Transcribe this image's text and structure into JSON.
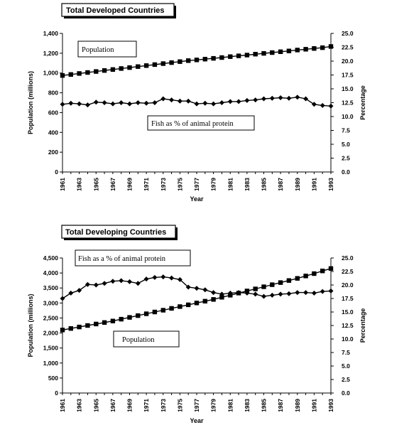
{
  "chart_data": [
    {
      "type": "line",
      "title": "Total Developed Countries",
      "xlabel": "Year",
      "ylabel_left": "Population (millions)",
      "ylabel_right": "Percentage",
      "ylim_left": [
        0,
        1400
      ],
      "ylim_right": [
        0,
        25
      ],
      "left_ticks": [
        "0",
        "200",
        "400",
        "600",
        "800",
        "1,000",
        "1,200",
        "1,400"
      ],
      "right_ticks": [
        "0.0",
        "2.5",
        "5.0",
        "7.5",
        "10.0",
        "12.5",
        "15.0",
        "17.5",
        "20.0",
        "22.5",
        "25.0"
      ],
      "x_tick_labels": [
        "1961",
        "1963",
        "1965",
        "1967",
        "1969",
        "1971",
        "1973",
        "1975",
        "1977",
        "1979",
        "1981",
        "1983",
        "1985",
        "1987",
        "1989",
        "1991",
        "1993"
      ],
      "x": [
        1961,
        1962,
        1963,
        1964,
        1965,
        1966,
        1967,
        1968,
        1969,
        1970,
        1971,
        1972,
        1973,
        1974,
        1975,
        1976,
        1977,
        1978,
        1979,
        1980,
        1981,
        1982,
        1983,
        1984,
        1985,
        1986,
        1987,
        1988,
        1989,
        1990,
        1991,
        1992,
        1993
      ],
      "grid": false,
      "series": [
        {
          "name": "Population",
          "axis": "left",
          "marker": "square",
          "values": [
            975,
            985,
            995,
            1005,
            1015,
            1025,
            1035,
            1045,
            1055,
            1065,
            1075,
            1085,
            1095,
            1105,
            1115,
            1125,
            1132,
            1140,
            1148,
            1156,
            1165,
            1173,
            1181,
            1190,
            1198,
            1206,
            1215,
            1223,
            1232,
            1240,
            1248,
            1256,
            1268
          ]
        },
        {
          "name": "Fish as % of animal protein",
          "axis": "right",
          "marker": "diamond",
          "values": [
            12.2,
            12.4,
            12.3,
            12.1,
            12.6,
            12.5,
            12.3,
            12.5,
            12.3,
            12.5,
            12.4,
            12.5,
            13.2,
            13.0,
            12.8,
            12.8,
            12.3,
            12.4,
            12.3,
            12.5,
            12.7,
            12.7,
            12.9,
            13.0,
            13.2,
            13.3,
            13.4,
            13.3,
            13.5,
            13.2,
            12.2,
            12.0,
            11.9
          ]
        }
      ]
    },
    {
      "type": "line",
      "title": "Total Developing Countries",
      "xlabel": "Year",
      "ylabel_left": "Population (millions)",
      "ylabel_right": "Percentage",
      "ylim_left": [
        0,
        4500
      ],
      "ylim_right": [
        0,
        25
      ],
      "left_ticks": [
        "0",
        "500",
        "1,000",
        "1,500",
        "2,000",
        "2,500",
        "3,000",
        "3,500",
        "4,000",
        "4,500"
      ],
      "right_ticks": [
        "0.0",
        "2.5",
        "5.0",
        "7.5",
        "10.0",
        "12.5",
        "15.0",
        "17.5",
        "20.0",
        "22.5",
        "25.0"
      ],
      "x_tick_labels": [
        "1961",
        "1963",
        "1965",
        "1967",
        "1969",
        "1971",
        "1973",
        "1975",
        "1977",
        "1979",
        "1981",
        "1983",
        "1985",
        "1987",
        "1989",
        "1991",
        "1993"
      ],
      "x": [
        1961,
        1962,
        1963,
        1964,
        1965,
        1966,
        1967,
        1968,
        1969,
        1970,
        1971,
        1972,
        1973,
        1974,
        1975,
        1976,
        1977,
        1978,
        1979,
        1980,
        1981,
        1982,
        1983,
        1984,
        1985,
        1986,
        1987,
        1988,
        1989,
        1990,
        1991,
        1992,
        1993
      ],
      "grid": false,
      "series": [
        {
          "name": "Population",
          "axis": "left",
          "marker": "square",
          "values": [
            2100,
            2150,
            2200,
            2250,
            2300,
            2350,
            2400,
            2460,
            2520,
            2580,
            2640,
            2700,
            2760,
            2820,
            2880,
            2940,
            3000,
            3060,
            3120,
            3190,
            3260,
            3330,
            3400,
            3470,
            3540,
            3610,
            3680,
            3750,
            3820,
            3900,
            3980,
            4070,
            4150
          ]
        },
        {
          "name": "Fish as a % of animal protein",
          "axis": "right",
          "marker": "diamond",
          "values": [
            17.5,
            18.5,
            19.0,
            20.1,
            20.0,
            20.3,
            20.7,
            20.8,
            20.6,
            20.3,
            21.1,
            21.4,
            21.5,
            21.3,
            21.0,
            19.6,
            19.4,
            19.1,
            18.6,
            18.3,
            18.5,
            18.6,
            18.5,
            18.3,
            17.9,
            18.1,
            18.3,
            18.4,
            18.6,
            18.6,
            18.5,
            18.8,
            18.9
          ]
        }
      ]
    }
  ]
}
